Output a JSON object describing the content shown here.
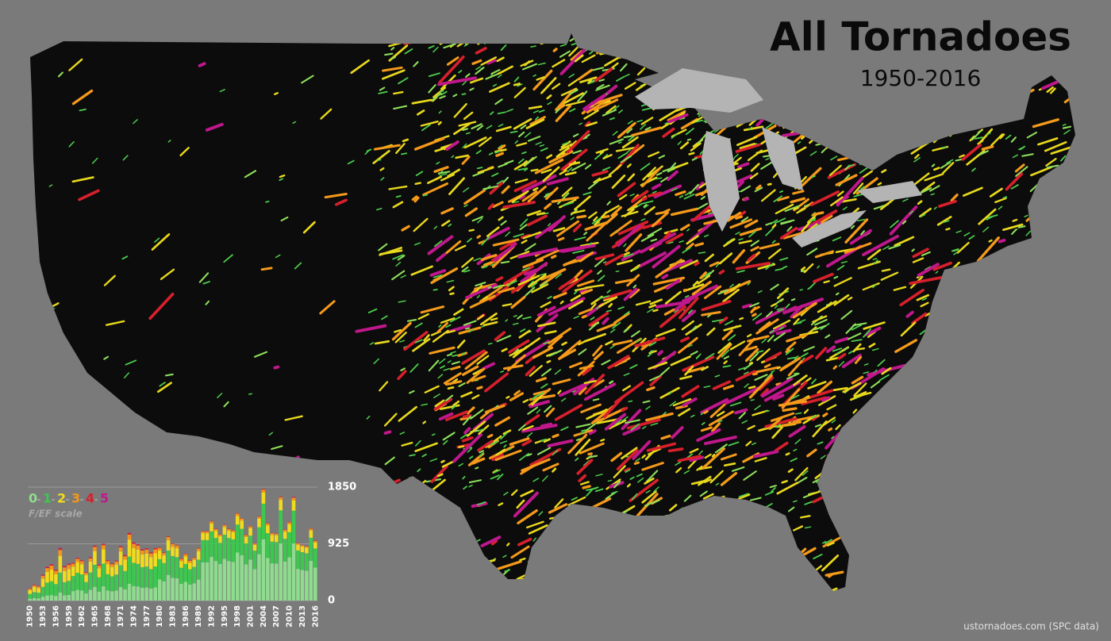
{
  "map": {
    "title": "All Tornadoes",
    "subtitle": "1950-2016",
    "source": "ustornadoes.com (SPC data)"
  },
  "chart_data": {
    "type": "bar",
    "stacked": true,
    "legend_caption": "F/EF scale",
    "categories": [
      "1950",
      null,
      null,
      "1953",
      null,
      null,
      "1956",
      null,
      null,
      "1959",
      null,
      null,
      "1962",
      null,
      null,
      "1965",
      null,
      null,
      "1968",
      null,
      null,
      "1971",
      null,
      null,
      "1974",
      null,
      null,
      "1977",
      null,
      null,
      "1980",
      null,
      null,
      "1983",
      null,
      null,
      "1986",
      null,
      null,
      "1989",
      null,
      null,
      "1992",
      null,
      null,
      "1995",
      null,
      null,
      "1998",
      null,
      null,
      "2001",
      null,
      null,
      "2004",
      null,
      null,
      "2007",
      null,
      null,
      "2010",
      null,
      null,
      "2013",
      null,
      null,
      "2016"
    ],
    "ylim": [
      0,
      1850
    ],
    "yticks": [
      0,
      925,
      1850
    ],
    "grid": true,
    "series": [
      {
        "name": "0",
        "color": "#8fdc8f",
        "values": [
          30,
          39,
          36,
          63,
          83,
          89,
          76,
          129,
          85,
          91,
          154,
          174,
          164,
          116,
          176,
          224,
          146,
          232,
          165,
          152,
          163,
          222,
          185,
          276,
          237,
          230,
          209,
          213,
          197,
          214,
          346,
          313,
          418,
          372,
          363,
          274,
          306,
          262,
          281,
          342,
          623,
          623,
          713,
          645,
          595,
          679,
          645,
          631,
          783,
          740,
          589,
          669,
          514,
          756,
          999,
          695,
          607,
          603,
          931,
          636,
          705,
          930,
          516,
          499,
          487,
          647,
          537
        ]
      },
      {
        "name": "1",
        "color": "#3cc84e",
        "values": [
          76,
          99,
          91,
          160,
          209,
          225,
          192,
          326,
          214,
          230,
          246,
          279,
          263,
          185,
          282,
          359,
          234,
          370,
          264,
          243,
          261,
          355,
          296,
          441,
          379,
          368,
          334,
          341,
          315,
          342,
          329,
          298,
          397,
          354,
          345,
          260,
          290,
          249,
          267,
          325,
          363,
          362,
          415,
          375,
          346,
          395,
          375,
          367,
          456,
          430,
          343,
          389,
          299,
          440,
          581,
          404,
          353,
          351,
          541,
          370,
          410,
          535,
          300,
          290,
          284,
          377,
          312
        ]
      },
      {
        "name": "2",
        "color": "#f0dc1e",
        "values": [
          64,
          83,
          77,
          135,
          176,
          190,
          161,
          275,
          180,
          193,
          154,
          174,
          164,
          116,
          176,
          224,
          146,
          232,
          165,
          152,
          163,
          222,
          185,
          276,
          237,
          230,
          209,
          213,
          197,
          214,
          139,
          125,
          167,
          149,
          145,
          109,
          122,
          105,
          112,
          137,
          113,
          113,
          130,
          117,
          108,
          124,
          117,
          115,
          142,
          135,
          107,
          122,
          93,
          137,
          182,
          126,
          110,
          110,
          169,
          116,
          128,
          169,
          94,
          91,
          89,
          118,
          98
        ]
      },
      {
        "name": "3",
        "color": "#f5961a",
        "values": [
          22,
          29,
          26,
          46,
          61,
          65,
          55,
          94,
          62,
          66,
          46,
          52,
          49,
          35,
          53,
          67,
          44,
          69,
          50,
          46,
          49,
          67,
          56,
          83,
          71,
          69,
          63,
          64,
          59,
          64,
          43,
          39,
          52,
          47,
          45,
          34,
          38,
          33,
          35,
          43,
          28,
          28,
          32,
          29,
          27,
          31,
          29,
          29,
          36,
          34,
          27,
          30,
          23,
          34,
          45,
          32,
          28,
          27,
          42,
          29,
          32,
          42,
          23,
          23,
          22,
          29,
          24
        ]
      },
      {
        "name": "4",
        "color": "#d8202c",
        "values": [
          6,
          8,
          7,
          13,
          17,
          18,
          15,
          26,
          17,
          18,
          12,
          14,
          13,
          9,
          14,
          18,
          12,
          19,
          13,
          12,
          13,
          18,
          15,
          22,
          19,
          18,
          17,
          17,
          16,
          17,
          9,
          8,
          10,
          9,
          9,
          7,
          8,
          7,
          7,
          9,
          5,
          6,
          6,
          6,
          6,
          6,
          6,
          5,
          7,
          6,
          5,
          6,
          5,
          7,
          10,
          7,
          5,
          4,
          9,
          5,
          7,
          9,
          5,
          3,
          4,
          6,
          5
        ]
      },
      {
        "name": "5",
        "color": "#c0188c",
        "values": [
          2,
          3,
          2,
          4,
          6,
          6,
          5,
          9,
          6,
          6,
          3,
          3,
          3,
          2,
          4,
          4,
          3,
          5,
          3,
          3,
          3,
          4,
          4,
          6,
          5,
          5,
          4,
          4,
          4,
          4,
          0,
          0,
          1,
          0,
          0,
          1,
          0,
          0,
          0,
          0,
          1,
          1,
          1,
          1,
          0,
          0,
          1,
          1,
          0,
          0,
          0,
          0,
          0,
          0,
          0,
          0,
          0,
          1,
          0,
          0,
          0,
          6,
          0,
          1,
          0,
          0,
          0
        ]
      }
    ]
  }
}
